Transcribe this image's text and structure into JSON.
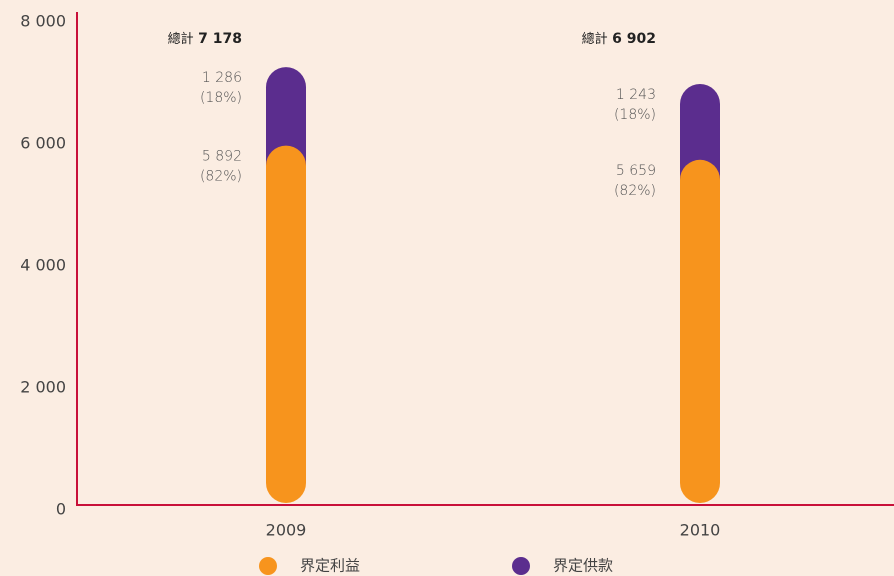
{
  "chart_data": {
    "type": "bar",
    "stacked": true,
    "categories": [
      "2009",
      "2010"
    ],
    "series": [
      {
        "name": "界定利益",
        "color": "#f7941d",
        "values": [
          5892,
          5659
        ],
        "value_labels": [
          "5 892",
          "5 659"
        ],
        "percent_labels": [
          "(82%)",
          "(82%)"
        ]
      },
      {
        "name": "界定供款",
        "color": "#5b2d8e",
        "values": [
          1286,
          1243
        ],
        "value_labels": [
          "1 286",
          "1 243"
        ],
        "percent_labels": [
          "(18%)",
          "(18%)"
        ]
      }
    ],
    "total_label": "總計",
    "totals": [
      7178,
      6902
    ],
    "total_labels": [
      "7 178",
      "6 902"
    ],
    "ylim": [
      0,
      8000
    ],
    "yticks": [
      0,
      {
        "value": 2000,
        "label": "2 000"
      },
      {
        "value": 4000,
        "label": "4 000"
      },
      {
        "value": 6000,
        "label": "6 000"
      },
      {
        "value": 8000,
        "label": "8 000"
      }
    ],
    "axis_color": "#c8103a"
  }
}
